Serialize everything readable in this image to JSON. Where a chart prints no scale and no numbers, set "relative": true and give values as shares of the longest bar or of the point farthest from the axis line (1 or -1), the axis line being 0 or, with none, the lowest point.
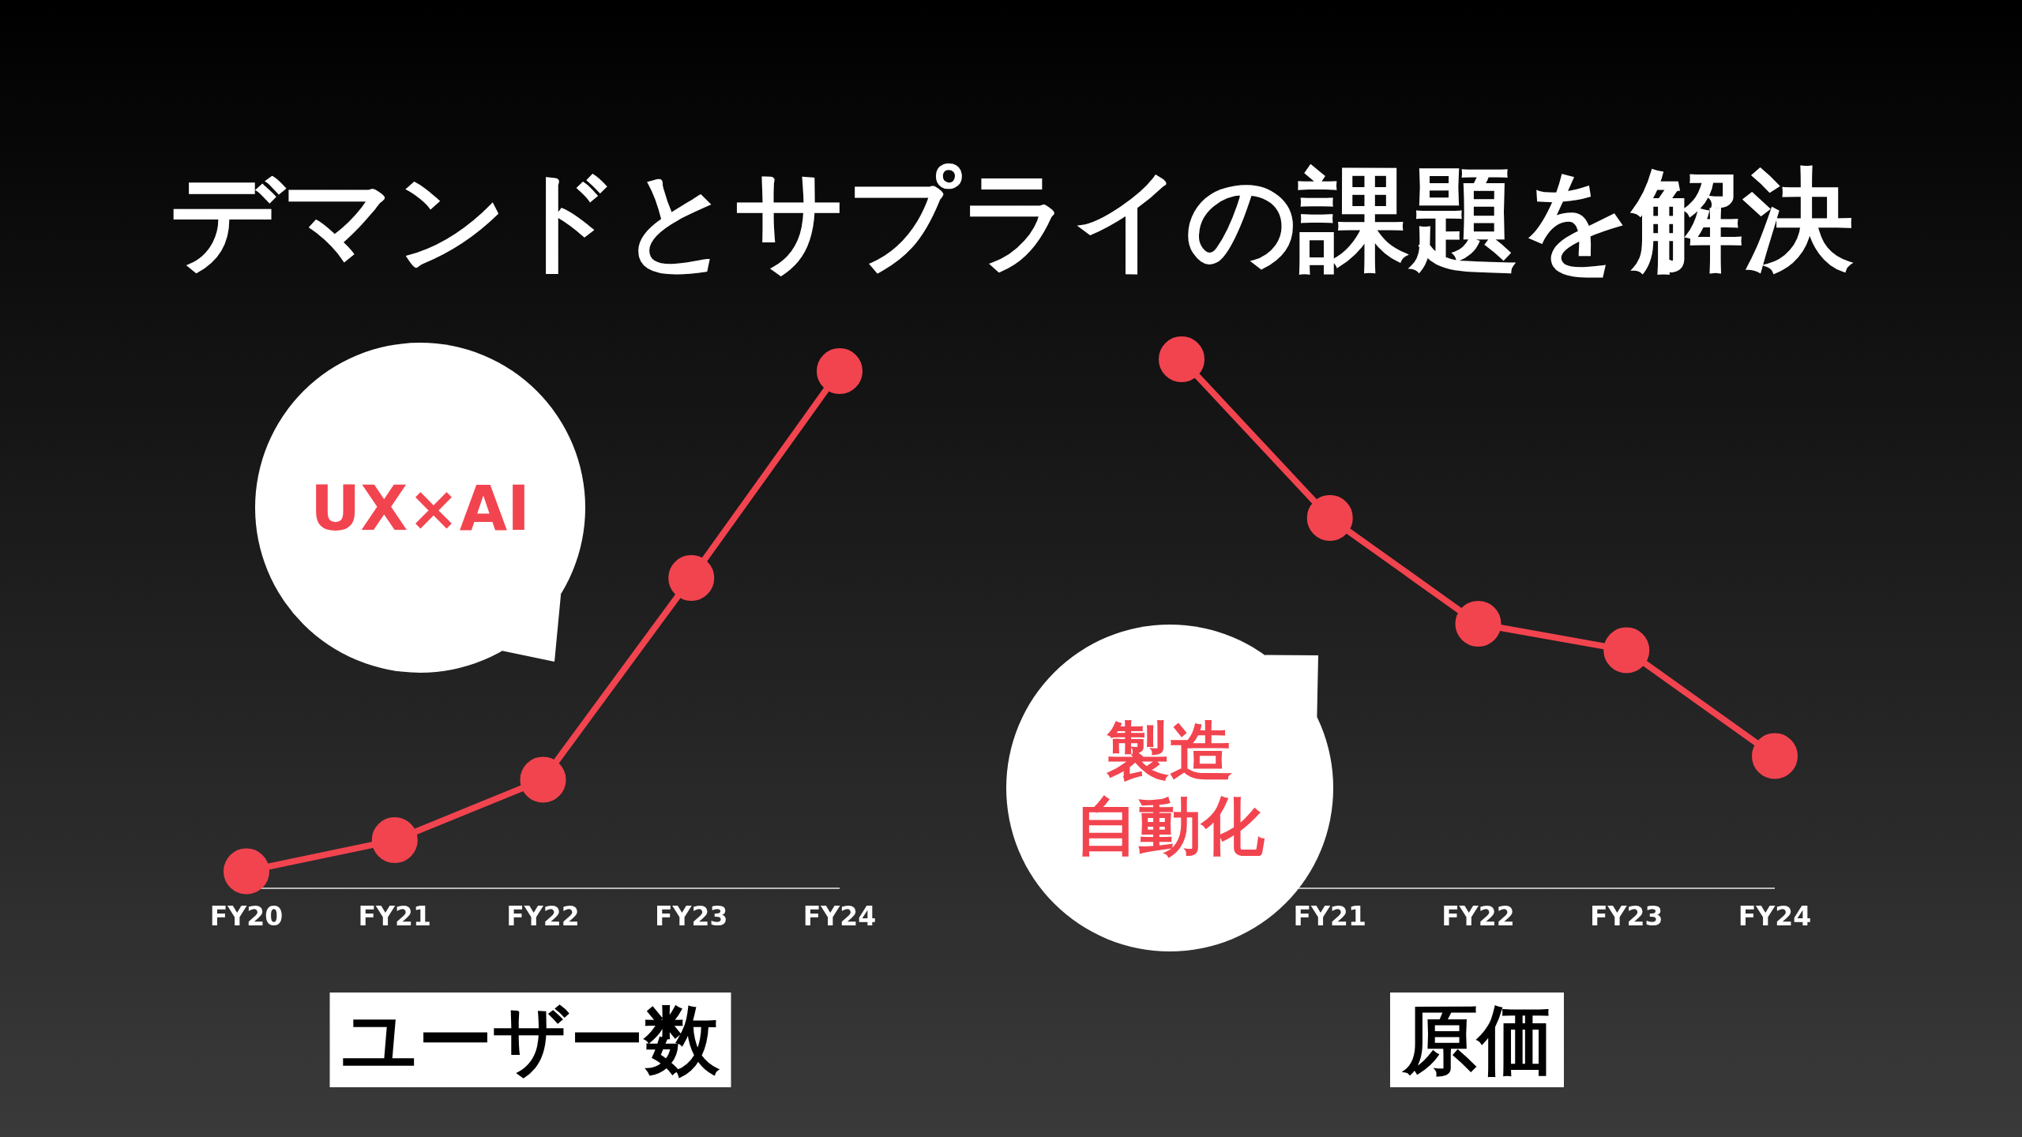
{
  "chart_data": [
    {
      "type": "line",
      "title": "デマンドとサプライの課題を解決",
      "categories": [
        "FY20",
        "FY21",
        "FY22",
        "FY23",
        "FY24"
      ],
      "relative": true,
      "marker": "circle",
      "xlabel": "ユーザー数",
      "annotations": [
        "UX×AI"
      ],
      "series": [
        {
          "color": "#f2444f",
          "values": [
            0.033,
            0.093,
            0.21,
            0.6,
            1
          ]
        }
      ]
    },
    {
      "type": "line",
      "categories": [
        null,
        "FY21",
        "FY22",
        "FY23",
        "FY24"
      ],
      "relative": true,
      "marker": "circle",
      "xlabel": "原価",
      "annotations": [
        "製造",
        "自動化"
      ],
      "series": [
        {
          "color": "#f2444f",
          "values": [
            1,
            0.7,
            0.5,
            0.45,
            0.25
          ]
        }
      ]
    }
  ]
}
